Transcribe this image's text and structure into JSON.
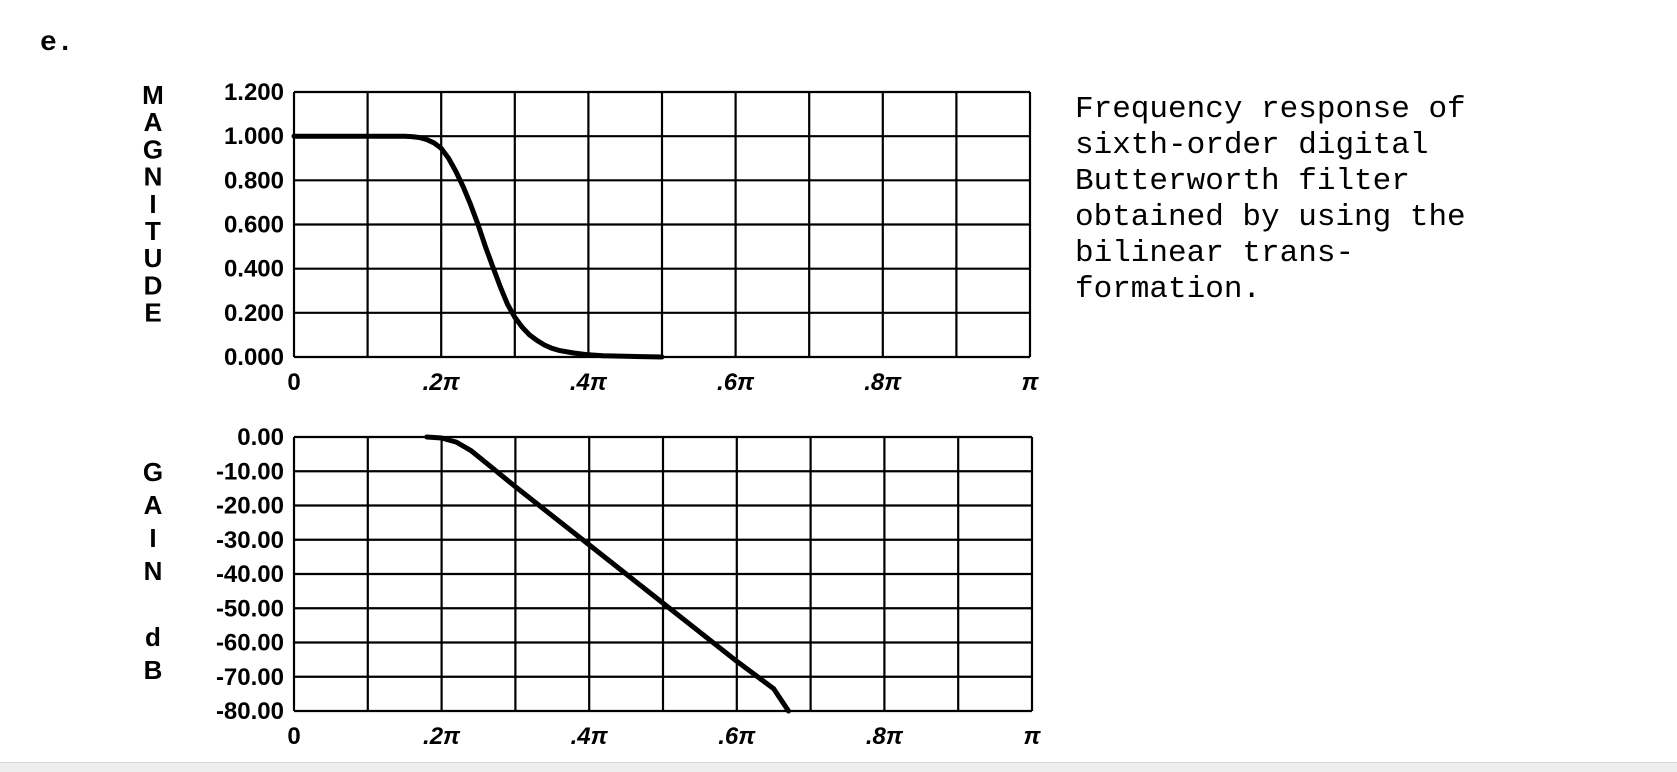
{
  "figure_label": "e.",
  "caption": "Frequency response of\nsixth-order digital\nButterworth filter\nobtained by using the\nbilinear trans-\nformation.",
  "chart_data": [
    {
      "type": "line",
      "title": "",
      "ylabel": "MAGNITUDE",
      "xlabel": "",
      "xlim": [
        0,
        1
      ],
      "ylim": [
        0,
        1.2
      ],
      "grid": true,
      "x_grid_divisions": 10,
      "y_grid_divisions": 6,
      "yticks": [
        {
          "value": 1.2,
          "label": "1.200"
        },
        {
          "value": 1.0,
          "label": "1.000"
        },
        {
          "value": 0.8,
          "label": "0.800"
        },
        {
          "value": 0.6,
          "label": "0.600"
        },
        {
          "value": 0.4,
          "label": "0.400"
        },
        {
          "value": 0.2,
          "label": "0.200"
        },
        {
          "value": 0.0,
          "label": "0.000"
        }
      ],
      "xticks": [
        {
          "value": 0.0,
          "label": "0"
        },
        {
          "value": 0.2,
          "label": ".2π"
        },
        {
          "value": 0.4,
          "label": ".4π"
        },
        {
          "value": 0.6,
          "label": ".6π"
        },
        {
          "value": 0.8,
          "label": ".8π"
        },
        {
          "value": 1.0,
          "label": "π"
        }
      ],
      "series": [
        {
          "color": "#000000",
          "x": [
            0,
            0.05,
            0.1,
            0.15,
            0.16,
            0.17,
            0.18,
            0.19,
            0.2,
            0.21,
            0.22,
            0.23,
            0.24,
            0.25,
            0.26,
            0.27,
            0.28,
            0.29,
            0.3,
            0.31,
            0.32,
            0.33,
            0.34,
            0.35,
            0.36,
            0.38,
            0.4,
            0.42,
            0.45,
            0.5
          ],
          "values": [
            1.0,
            1.0,
            1.0,
            1.0,
            0.998,
            0.994,
            0.985,
            0.97,
            0.945,
            0.9,
            0.84,
            0.77,
            0.69,
            0.6,
            0.5,
            0.41,
            0.32,
            0.24,
            0.18,
            0.135,
            0.1,
            0.075,
            0.055,
            0.04,
            0.03,
            0.018,
            0.01,
            0.006,
            0.003,
            0.0
          ]
        }
      ]
    },
    {
      "type": "line",
      "title": "",
      "ylabel": "GAIN dB",
      "xlabel": "",
      "xlim": [
        0,
        1
      ],
      "ylim": [
        -80,
        0
      ],
      "grid": true,
      "x_grid_divisions": 10,
      "y_grid_divisions": 8,
      "yticks": [
        {
          "value": 0,
          "label": "0.00"
        },
        {
          "value": -10,
          "label": "-10.00"
        },
        {
          "value": -20,
          "label": "-20.00"
        },
        {
          "value": -30,
          "label": "-30.00"
        },
        {
          "value": -40,
          "label": "-40.00"
        },
        {
          "value": -50,
          "label": "-50.00"
        },
        {
          "value": -60,
          "label": "-60.00"
        },
        {
          "value": -70,
          "label": "-70.00"
        },
        {
          "value": -80,
          "label": "-80.00"
        }
      ],
      "xticks": [
        {
          "value": 0.0,
          "label": "0"
        },
        {
          "value": 0.2,
          "label": ".2π"
        },
        {
          "value": 0.4,
          "label": ".4π"
        },
        {
          "value": 0.6,
          "label": ".6π"
        },
        {
          "value": 0.8,
          "label": ".8π"
        },
        {
          "value": 1.0,
          "label": "π"
        }
      ],
      "series": [
        {
          "color": "#000000",
          "x": [
            0.18,
            0.2,
            0.22,
            0.24,
            0.26,
            0.28,
            0.3,
            0.35,
            0.4,
            0.45,
            0.5,
            0.55,
            0.6,
            0.65,
            0.67
          ],
          "values": [
            0,
            -0.3,
            -1.5,
            -4,
            -7.5,
            -11,
            -14.5,
            -23,
            -31.5,
            -40,
            -48.5,
            -57,
            -65.5,
            -73.5,
            -80
          ]
        }
      ]
    }
  ]
}
